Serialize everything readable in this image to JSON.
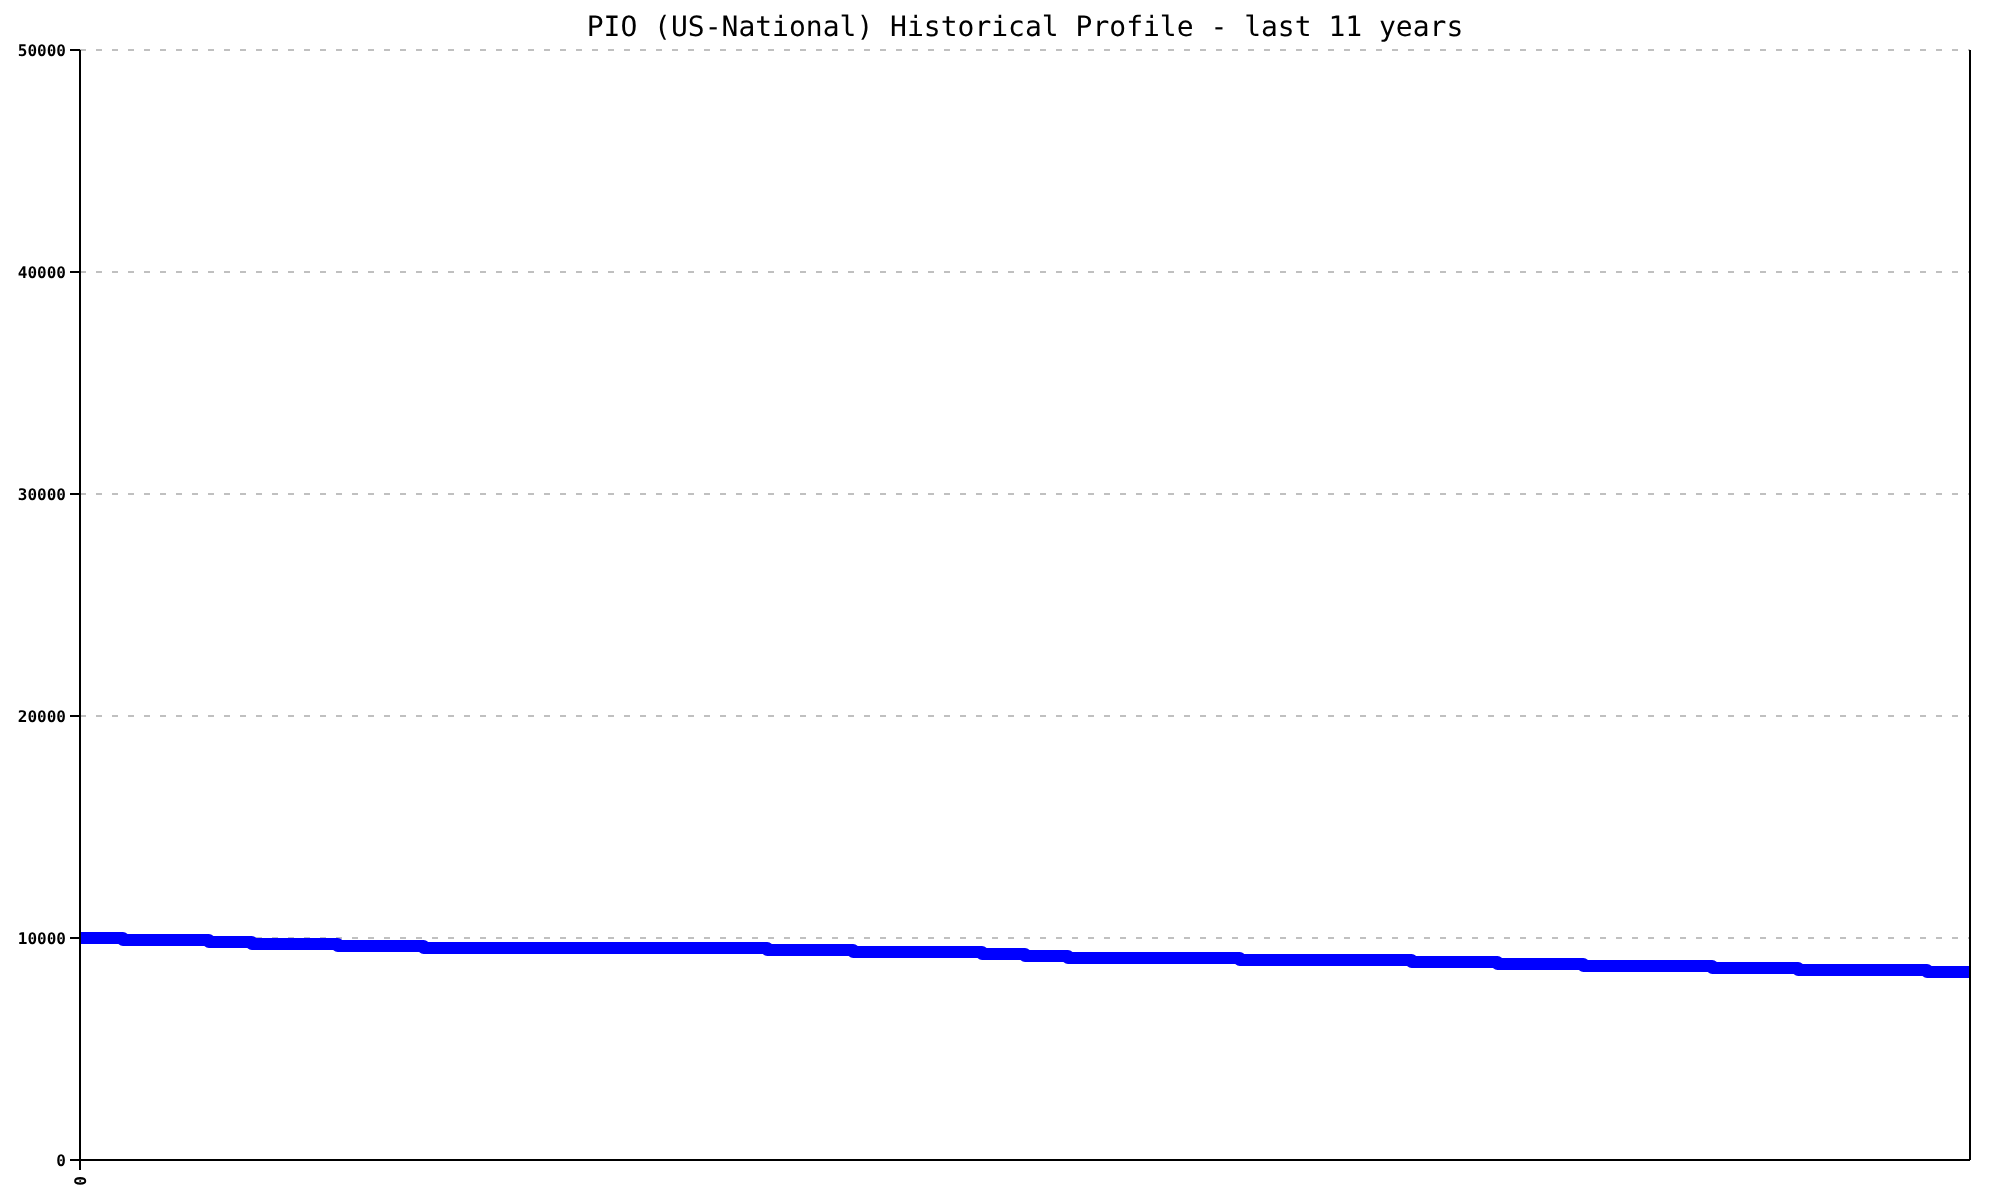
{
  "chart_data": {
    "type": "step",
    "title": "PIO (US-National) Historical Profile - last 11 years",
    "categories": [
      null,
      null,
      null,
      null,
      null,
      null,
      null,
      null,
      null,
      null,
      null,
      null,
      null,
      null,
      null,
      null,
      null,
      null,
      null,
      null,
      null,
      null,
      null,
      null,
      null,
      null,
      null,
      null,
      null,
      null,
      null,
      null,
      null,
      null,
      null,
      null,
      null,
      null,
      null,
      null,
      null,
      null,
      null,
      null,
      null
    ],
    "series": [
      {
        "color": "#0000ff",
        "values": [
          10000,
          9910,
          9910,
          9820,
          9730,
          9730,
          9640,
          9640,
          9550,
          9550,
          9550,
          9550,
          9550,
          9550,
          9550,
          9550,
          9460,
          9460,
          9370,
          9370,
          9370,
          9280,
          9190,
          9100,
          9100,
          9100,
          9100,
          9010,
          9010,
          9010,
          9010,
          8920,
          8920,
          8830,
          8830,
          8740,
          8740,
          8740,
          8650,
          8650,
          8560,
          8560,
          8560,
          8470,
          8470
        ]
      }
    ],
    "ylim": [
      0,
      50000
    ],
    "yticks": [
      0,
      10000,
      20000,
      30000,
      40000,
      50000
    ],
    "annotations": [
      "0"
    ],
    "grid": "y"
  }
}
